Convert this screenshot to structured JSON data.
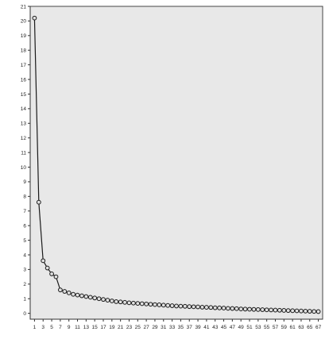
{
  "chart_data": {
    "type": "line",
    "title": "",
    "xlabel": "",
    "ylabel": "",
    "x_ticks": [
      1,
      3,
      5,
      7,
      9,
      11,
      13,
      15,
      17,
      19,
      21,
      23,
      25,
      27,
      29,
      31,
      33,
      35,
      37,
      39,
      41,
      43,
      45,
      47,
      49,
      51,
      53,
      55,
      57,
      59,
      61,
      63,
      65,
      67
    ],
    "y_ticks": [
      0,
      1,
      2,
      3,
      4,
      5,
      6,
      7,
      8,
      9,
      10,
      11,
      12,
      13,
      14,
      15,
      16,
      17,
      18,
      19,
      20,
      21
    ],
    "xlim": [
      0,
      68
    ],
    "ylim": [
      -0.4,
      21
    ],
    "grid": false,
    "colors": {
      "plot_background": "#e8e8e8",
      "line": "#1a1a1a",
      "marker_fill": "#e0e0e0"
    },
    "series": [
      {
        "x": [
          1,
          2,
          3,
          4,
          5,
          6,
          7,
          8,
          9,
          10,
          11,
          12,
          13,
          14,
          15,
          16,
          17,
          18,
          19,
          20,
          21,
          22,
          23,
          24,
          25,
          26,
          27,
          28,
          29,
          30,
          31,
          32,
          33,
          34,
          35,
          36,
          37,
          38,
          39,
          40,
          41,
          42,
          43,
          44,
          45,
          46,
          47,
          48,
          49,
          50,
          51,
          52,
          53,
          54,
          55,
          56,
          57,
          58,
          59,
          60,
          61,
          62,
          63,
          64,
          65,
          66,
          67
        ],
        "values": [
          20.2,
          7.6,
          3.6,
          3.1,
          2.7,
          2.5,
          1.6,
          1.5,
          1.4,
          1.3,
          1.25,
          1.2,
          1.15,
          1.1,
          1.05,
          1.0,
          0.95,
          0.9,
          0.85,
          0.8,
          0.78,
          0.75,
          0.72,
          0.7,
          0.68,
          0.66,
          0.64,
          0.62,
          0.6,
          0.58,
          0.56,
          0.54,
          0.52,
          0.5,
          0.49,
          0.48,
          0.46,
          0.45,
          0.44,
          0.42,
          0.41,
          0.4,
          0.38,
          0.37,
          0.36,
          0.34,
          0.33,
          0.32,
          0.3,
          0.29,
          0.28,
          0.27,
          0.26,
          0.25,
          0.24,
          0.23,
          0.22,
          0.21,
          0.2,
          0.19,
          0.18,
          0.17,
          0.16,
          0.15,
          0.14,
          0.13,
          0.12
        ]
      }
    ]
  }
}
